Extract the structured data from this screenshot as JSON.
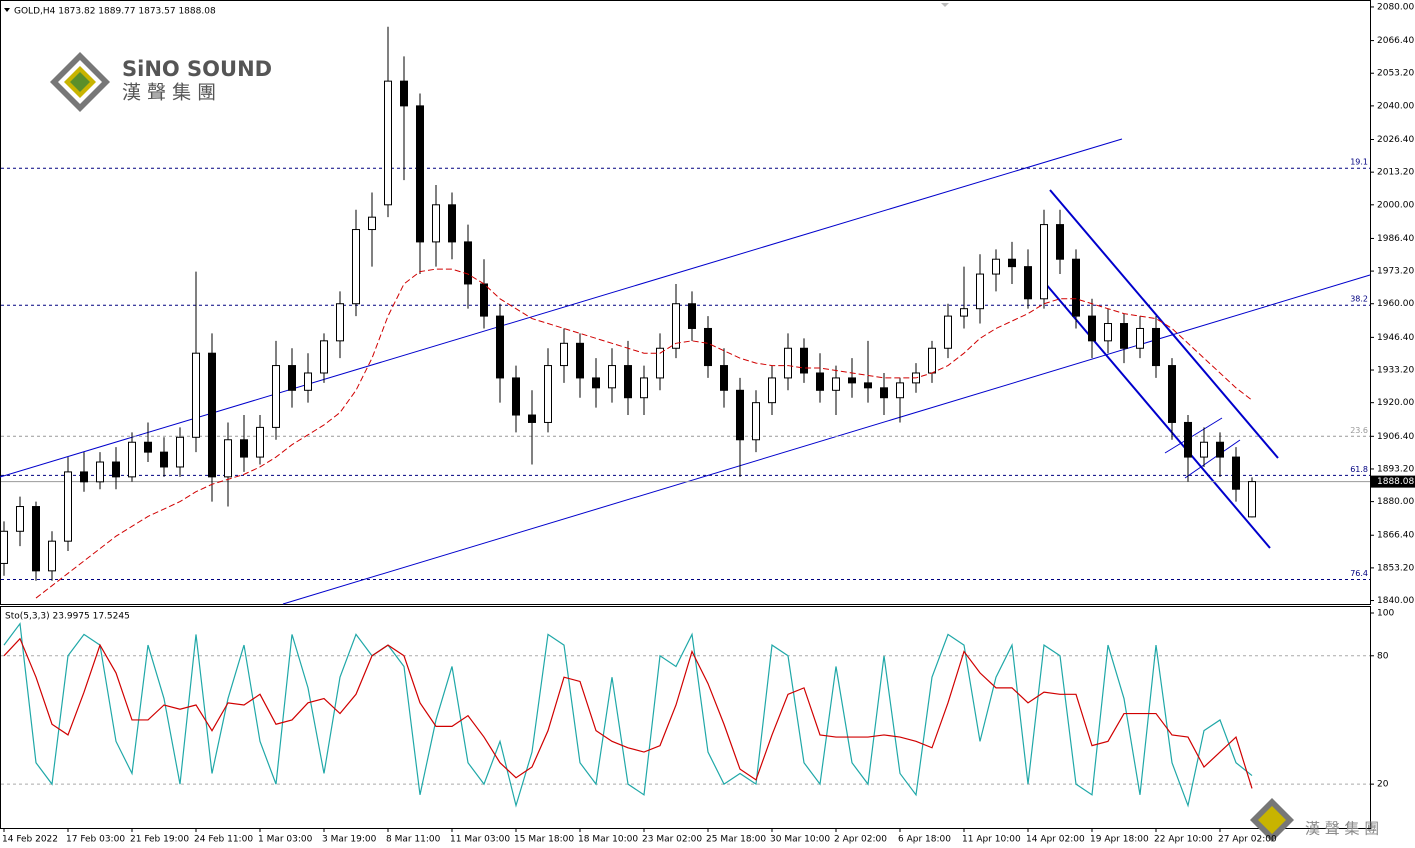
{
  "chart_data": [
    {
      "type": "candlestick",
      "title": "GOLD,H4 1873.82 1889.77 1873.57 1888.08",
      "categories": [
        "14 Feb 2022",
        null,
        null,
        null,
        "17 Feb 03:00",
        null,
        null,
        null,
        "21 Feb 19:00",
        null,
        null,
        null,
        "24 Feb 11:00",
        null,
        null,
        null,
        "1 Mar 03:00",
        null,
        null,
        null,
        "3 Mar 19:00",
        null,
        null,
        null,
        "8 Mar 11:00",
        null,
        null,
        null,
        "11 Mar 03:00",
        null,
        null,
        null,
        "15 Mar 18:00",
        null,
        null,
        null,
        "18 Mar 10:00",
        null,
        null,
        null,
        "23 Mar 02:00",
        null,
        null,
        null,
        "25 Mar 18:00",
        null,
        null,
        null,
        "30 Mar 10:00",
        null,
        null,
        null,
        "2 Apr 02:00",
        null,
        null,
        null,
        "6 Apr 18:00",
        null,
        null,
        null,
        "11 Apr 10:00",
        null,
        null,
        null,
        "14 Apr 02:00",
        null,
        null,
        null,
        "19 Apr 18:00",
        null,
        null,
        null,
        "22 Apr 10:00",
        null,
        null,
        null,
        "27 Apr 02:00",
        null,
        null
      ],
      "open": [
        1855,
        1868,
        1878,
        1852,
        1864,
        1892,
        1888,
        1896,
        1890,
        1904,
        1900,
        1894,
        1906,
        1940,
        1890,
        1905,
        1898,
        1910,
        1935,
        1925,
        1932,
        1945,
        1960,
        1990,
        2000,
        2050,
        2040,
        1985,
        2000,
        1985,
        1968,
        1955,
        1930,
        1915,
        1912,
        1935,
        1944,
        1930,
        1926,
        1935,
        1922,
        1930,
        1942,
        1960,
        1950,
        1935,
        1925,
        1905,
        1920,
        1930,
        1942,
        1932,
        1925,
        1930,
        1928,
        1926,
        1922,
        1928,
        1932,
        1942,
        1955,
        1958,
        1972,
        1978,
        1975,
        1962,
        1992,
        1978,
        1955,
        1945,
        1952,
        1942,
        1950,
        1935,
        1912,
        1898,
        1904,
        1898,
        1873.82
      ],
      "high": [
        1872,
        1882,
        1880,
        1868,
        1898,
        1900,
        1900,
        1902,
        1908,
        1912,
        1906,
        1910,
        1973,
        1948,
        1912,
        1915,
        1915,
        1945,
        1942,
        1940,
        1948,
        1965,
        1998,
        2005,
        2072,
        2060,
        2045,
        2008,
        2005,
        1992,
        1978,
        1960,
        1935,
        1925,
        1942,
        1950,
        1948,
        1938,
        1942,
        1945,
        1935,
        1948,
        1968,
        1965,
        1955,
        1942,
        1930,
        1925,
        1935,
        1948,
        1946,
        1940,
        1935,
        1938,
        1945,
        1932,
        1930,
        1936,
        1945,
        1960,
        1975,
        1980,
        1982,
        1985,
        1982,
        1998,
        1998,
        1982,
        1962,
        1958,
        1956,
        1955,
        1955,
        1938,
        1915,
        1910,
        1908,
        1902,
        1889.77
      ],
      "low": [
        1850,
        1862,
        1848,
        1848,
        1860,
        1884,
        1885,
        1885,
        1888,
        1896,
        1890,
        1890,
        1900,
        1880,
        1878,
        1892,
        1895,
        1905,
        1918,
        1920,
        1928,
        1938,
        1955,
        1975,
        1995,
        2010,
        1972,
        1975,
        1978,
        1958,
        1950,
        1920,
        1908,
        1895,
        1908,
        1928,
        1922,
        1918,
        1920,
        1915,
        1915,
        1925,
        1938,
        1945,
        1930,
        1918,
        1890,
        1900,
        1915,
        1925,
        1928,
        1920,
        1915,
        1922,
        1920,
        1915,
        1912,
        1924,
        1928,
        1938,
        1950,
        1952,
        1965,
        1968,
        1958,
        1958,
        1972,
        1950,
        1938,
        1940,
        1936,
        1938,
        1930,
        1905,
        1888,
        1894,
        1890,
        1880,
        1873.57
      ],
      "close": [
        1868,
        1878,
        1852,
        1864,
        1892,
        1888,
        1896,
        1890,
        1904,
        1900,
        1894,
        1906,
        1940,
        1890,
        1905,
        1898,
        1910,
        1935,
        1925,
        1932,
        1945,
        1960,
        1990,
        1995,
        2050,
        2040,
        1985,
        2000,
        1985,
        1968,
        1955,
        1930,
        1915,
        1912,
        1935,
        1944,
        1930,
        1926,
        1935,
        1922,
        1930,
        1942,
        1960,
        1950,
        1935,
        1925,
        1905,
        1920,
        1930,
        1942,
        1932,
        1925,
        1930,
        1928,
        1926,
        1922,
        1928,
        1932,
        1942,
        1955,
        1958,
        1972,
        1978,
        1975,
        1962,
        1992,
        1978,
        1955,
        1945,
        1952,
        1942,
        1950,
        1935,
        1912,
        1898,
        1904,
        1898,
        1885,
        1888.08
      ],
      "ma": {
        "color": "#d00000",
        "values": [
          null,
          null,
          1841,
          1846,
          1851,
          1856,
          1861,
          1866,
          1870,
          1874,
          1877,
          1880,
          1884,
          1887,
          1889,
          1891,
          1894,
          1898,
          1903,
          1907,
          1911,
          1916,
          1925,
          1938,
          1955,
          1968,
          1973,
          1974,
          1974,
          1972,
          1968,
          1962,
          1958,
          1954,
          1952,
          1950,
          1948,
          1946,
          1944,
          1942,
          1940,
          1940,
          1944,
          1945,
          1944,
          1941,
          1938,
          1936,
          1935,
          1935,
          1934,
          1934,
          1933,
          1932,
          1931,
          1930,
          1930,
          1930,
          1932,
          1935,
          1940,
          1946,
          1950,
          1953,
          1956,
          1960,
          1962,
          1962,
          1960,
          1958,
          1956,
          1955,
          1954,
          1950,
          1944,
          1938,
          1932,
          1926,
          1921
        ]
      },
      "ylim": [
        1839,
        2082
      ],
      "yticks": [
        {
          "value": 2080,
          "label": "2080.00"
        },
        {
          "value": 2066.4,
          "label": "2066.40"
        },
        {
          "value": 2053.2,
          "label": "2053.20"
        },
        {
          "value": 2040,
          "label": "2040.00"
        },
        {
          "value": 2026.4,
          "label": "2026.40"
        },
        {
          "value": 2013.2,
          "label": "2013.20"
        },
        {
          "value": 2000,
          "label": "2000.00"
        },
        {
          "value": 1986.4,
          "label": "1986.40"
        },
        {
          "value": 1973.2,
          "label": "1973.20"
        },
        {
          "value": 1960,
          "label": "1960.00"
        },
        {
          "value": 1946.4,
          "label": "1946.40"
        },
        {
          "value": 1933.2,
          "label": "1933.20"
        },
        {
          "value": 1920,
          "label": "1920.00"
        },
        {
          "value": 1906.4,
          "label": "1906.40"
        },
        {
          "value": 1893.2,
          "label": "1893.20"
        },
        {
          "value": 1880,
          "label": "1880.00"
        },
        {
          "value": 1866.4,
          "label": "1866.40"
        },
        {
          "value": 1853.2,
          "label": "1853.20"
        },
        {
          "value": 1840,
          "label": "1840.00"
        }
      ],
      "levels": [
        {
          "value": 2014.8,
          "label": "19.1",
          "color": "#000080"
        },
        {
          "value": 1959.4,
          "label": "38.2",
          "color": "#000080"
        },
        {
          "value": 1906.4,
          "label": "23.6",
          "color": "#999999"
        },
        {
          "value": 1890.6,
          "label": "61.8",
          "color": "#000080"
        },
        {
          "value": 1848.5,
          "label": "76.4",
          "color": "#000080"
        }
      ],
      "last": {
        "value": 1888.08,
        "label": "1888.08"
      }
    },
    {
      "type": "line",
      "title": "Sto(5,3,3) 23.9975 17.5245",
      "series": [
        {
          "color": "#20a8a8",
          "values": [
            85,
            95,
            30,
            20,
            80,
            90,
            85,
            40,
            25,
            85,
            60,
            20,
            90,
            25,
            60,
            85,
            40,
            20,
            90,
            65,
            25,
            70,
            90,
            80,
            85,
            75,
            15,
            50,
            75,
            30,
            20,
            40,
            10,
            35,
            90,
            85,
            30,
            20,
            70,
            20,
            15,
            80,
            75,
            90,
            35,
            20,
            25,
            20,
            85,
            80,
            30,
            20,
            75,
            30,
            20,
            80,
            25,
            15,
            70,
            90,
            85,
            40,
            70,
            85,
            20,
            85,
            80,
            20,
            15,
            85,
            60,
            15,
            85,
            30,
            10,
            45,
            50,
            30,
            24
          ]
        },
        {
          "color": "#d00000",
          "values": [
            80,
            88,
            70,
            48,
            43,
            63,
            85,
            72,
            50,
            50,
            57,
            55,
            57,
            45,
            58,
            57,
            62,
            48,
            50,
            58,
            60,
            53,
            62,
            80,
            85,
            80,
            58,
            47,
            47,
            52,
            42,
            30,
            23,
            28,
            45,
            70,
            68,
            45,
            40,
            37,
            35,
            38,
            57,
            82,
            67,
            48,
            27,
            22,
            43,
            62,
            65,
            43,
            42,
            42,
            42,
            43,
            42,
            40,
            37,
            58,
            82,
            72,
            65,
            65,
            58,
            63,
            62,
            62,
            38,
            40,
            53,
            53,
            53,
            43,
            42,
            28,
            35,
            42,
            18
          ]
        }
      ],
      "ylim": [
        -0.5,
        102.8
      ],
      "yticks": [
        100,
        80,
        20
      ],
      "levels": [
        80,
        20
      ]
    }
  ],
  "logo": {
    "name": "SiNO SOUND",
    "chinese": "漢 聲 集 團"
  },
  "watermark": "漢 聲 集 團"
}
